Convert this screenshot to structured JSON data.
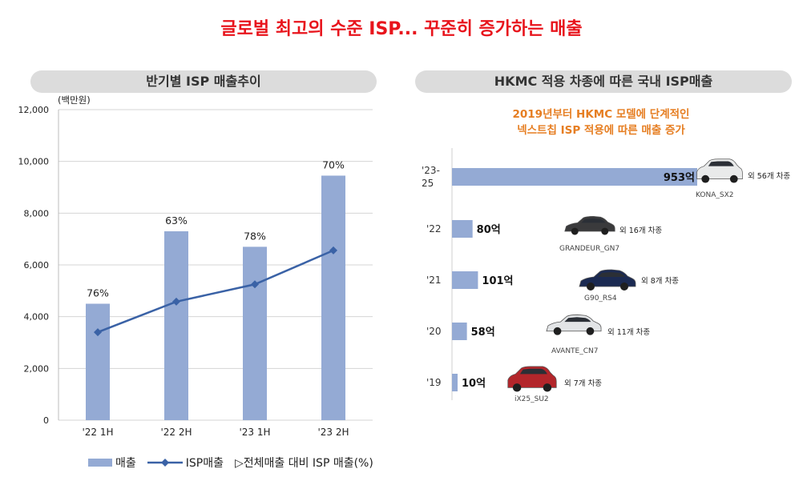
{
  "header": {
    "title": "글로벌 최고의 수준 ISP... 꾸준히 증가하는 매출"
  },
  "colors": {
    "title_red": "#e8141c",
    "subtitle_orange": "#e67e22",
    "bar_blue": "#94aad4",
    "line_blue": "#3a62a6",
    "pill_gray": "#dcdcdc"
  },
  "left_panel": {
    "header": "반기별 ISP 매출추이",
    "legend": {
      "bars": "매출",
      "line": "ISP매출",
      "ratio": "▷전체매출 대비 ISP 매출(%)"
    }
  },
  "right_panel": {
    "header": "HKMC 적용 차종에 따른 국내 ISP매출",
    "subtitle_line1": "2019년부터 HKMC 모델에 단계적인",
    "subtitle_line2": "넥스트칩 ISP 적용에 따른 매출 증가",
    "cars": [
      {
        "name": "KONA_SX2",
        "extra": "외 56개 차종",
        "color": "#e9eaea",
        "icon": "suv-icon"
      },
      {
        "name": "GRANDEUR_GN7",
        "extra": "외 16개 차종",
        "color": "#3a3a3c",
        "icon": "sedan-icon"
      },
      {
        "name": "G90_RS4",
        "extra": "외 8개 차종",
        "color": "#1b2a52",
        "icon": "sedan-icon"
      },
      {
        "name": "AVANTE_CN7",
        "extra": "외 11개 차종",
        "color": "#e2e4e6",
        "icon": "sedan-icon"
      },
      {
        "name": "iX25_SU2",
        "extra": "외 7개 차종",
        "color": "#b3262b",
        "icon": "suv-icon"
      }
    ]
  },
  "chart_data": [
    {
      "type": "bar",
      "title": "반기별 ISP 매출추이",
      "ylabel": "(백만원)",
      "xlabel": "",
      "ylim": [
        0,
        12000
      ],
      "yticks": [
        0,
        2000,
        4000,
        6000,
        8000,
        10000,
        12000
      ],
      "ytick_labels": [
        "0",
        "2,000",
        "4,000",
        "6,000",
        "8,000",
        "10,000",
        "12,000"
      ],
      "grid": true,
      "legend_position": "bottom",
      "categories": [
        "'22 1H",
        "'22 2H",
        "'23 1H",
        "'23 2H"
      ],
      "series": [
        {
          "name": "매출",
          "type": "bar",
          "values": [
            4500,
            7300,
            6700,
            9450
          ]
        },
        {
          "name": "ISP매출",
          "type": "line",
          "values": [
            3400,
            4580,
            5250,
            6560
          ]
        }
      ],
      "annotations": [
        "76%",
        "63%",
        "78%",
        "70%"
      ],
      "annotation_label": "▷전체매출 대비 ISP 매출(%)"
    },
    {
      "type": "bar",
      "orientation": "horizontal",
      "title": "HKMC 적용 차종에 따른 국내 ISP매출",
      "categories": [
        "'23-25",
        "'22",
        "'21",
        "'20",
        "'19"
      ],
      "values": [
        953,
        80,
        101,
        58,
        10
      ],
      "value_labels": [
        "953억",
        "80억",
        "101억",
        "58억",
        "10억"
      ],
      "unit": "억"
    }
  ]
}
